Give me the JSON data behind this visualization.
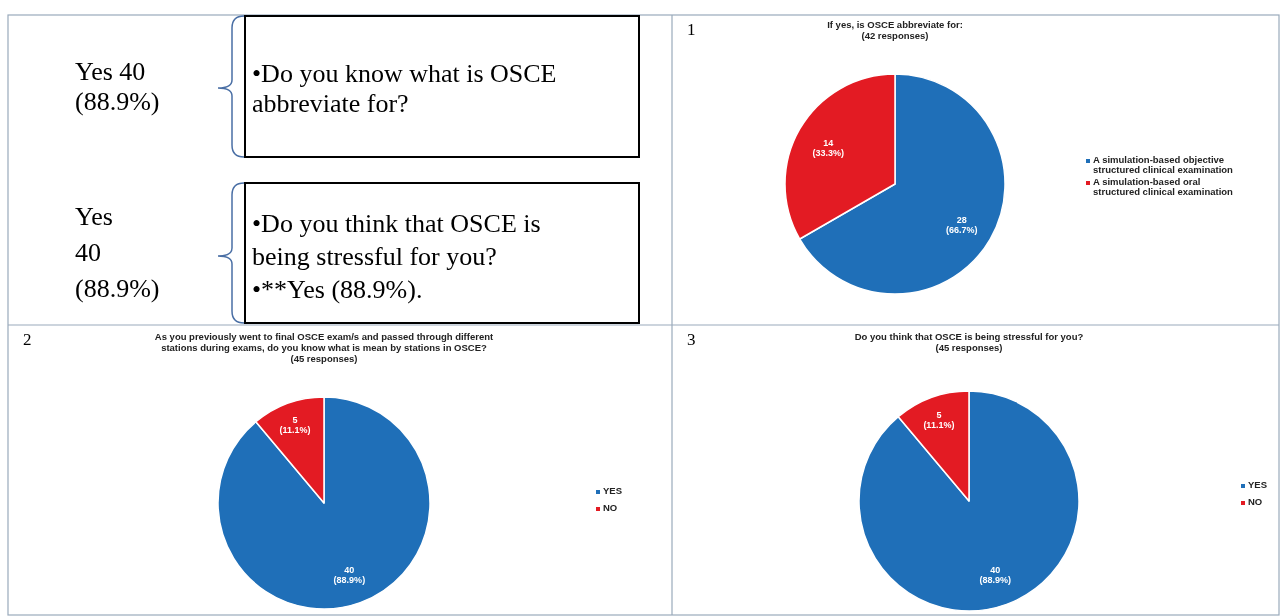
{
  "chart_data": [
    {
      "type": "other",
      "annotations": [
        "Yes 40\n(88.9%)",
        "•Do you know what is OSCE\nabbreviate for?",
        "Yes\n40\n(88.9%)",
        "•Do you think that OSCE is\nbeing stressful for you?\n•**Yes (88.9%)."
      ]
    },
    {
      "type": "pie",
      "title": "If yes, is OSCE abbreviate for:",
      "subtitle": "(42 responses)",
      "categories": [
        "A simulation-based objective structured clinical examination",
        "A simulation-based oral structured clinical examination"
      ],
      "values": [
        28,
        14
      ],
      "colors": [
        "#1f6fb8",
        "#e31b23"
      ],
      "value_labels": [
        "28 (66.7%)",
        "14 (33.3%)"
      ],
      "legend": "right",
      "annotations": [
        "1"
      ]
    },
    {
      "type": "pie",
      "title": "As you previously went to final OSCE exam/s and passed through different stations during exams, do you know what is mean by stations in OSCE?",
      "subtitle": "(45 responses)",
      "categories": [
        "YES",
        "NO"
      ],
      "values": [
        40,
        5
      ],
      "colors": [
        "#1f6fb8",
        "#e31b23"
      ],
      "value_labels": [
        "40 (88.9%)",
        "5 (11.1%)"
      ],
      "legend": "right",
      "annotations": [
        "2"
      ]
    },
    {
      "type": "pie",
      "title": "Do you think that OSCE is being stressful for you?",
      "subtitle": "(45 responses)",
      "categories": [
        "YES",
        "NO"
      ],
      "values": [
        40,
        5
      ],
      "colors": [
        "#1f6fb8",
        "#e31b23"
      ],
      "value_labels": [
        "40 (88.9%)",
        "5 (11.1%)"
      ],
      "legend": "right",
      "annotations": [
        "3"
      ]
    }
  ]
}
